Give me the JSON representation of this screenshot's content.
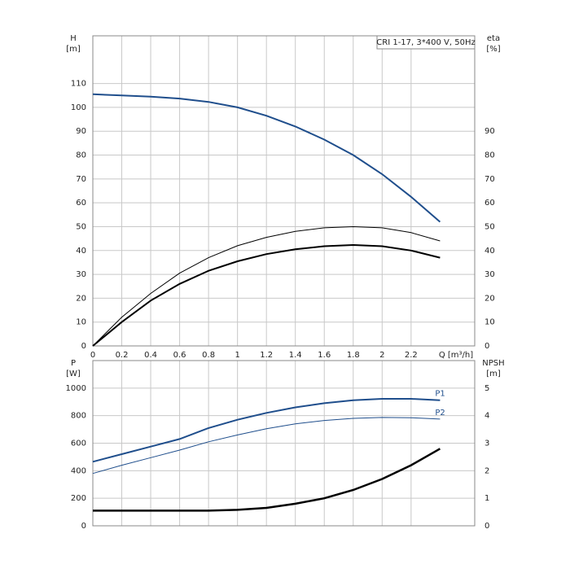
{
  "chart_data": [
    {
      "type": "line",
      "title": "CRI 1-17, 3*400 V, 50Hz",
      "ylabel": "H",
      "yunit": "[m]",
      "y2label": "eta",
      "y2unit": "[%]",
      "xlabel": "Q [m³/h]",
      "x": [
        0,
        0.2,
        0.4,
        0.6,
        0.8,
        1.0,
        1.2,
        1.4,
        1.6,
        1.8,
        2.0,
        2.2,
        2.4
      ],
      "xlim": [
        0,
        2.64
      ],
      "xticks": [
        0,
        0.2,
        0.4,
        0.6,
        0.8,
        1.0,
        1.2,
        1.4,
        1.6,
        1.8,
        2.0,
        2.2
      ],
      "ylim": [
        0,
        130
      ],
      "yticks": [
        0,
        10,
        20,
        30,
        40,
        50,
        60,
        70,
        80,
        90,
        100,
        110
      ],
      "y2lim": [
        0,
        130
      ],
      "y2ticks": [
        0,
        10,
        20,
        30,
        40,
        50,
        60,
        70,
        80,
        90
      ],
      "grid": true,
      "series": [
        {
          "color": "#1f4e8c",
          "values": [
            105.5,
            105,
            104.5,
            103.7,
            102.3,
            100,
            96.5,
            92,
            86.5,
            80,
            72,
            62.5,
            52
          ]
        },
        {
          "color": "#000000",
          "axis": "y2",
          "values": [
            0,
            12,
            22,
            30.5,
            37,
            42,
            45.5,
            48,
            49.5,
            50,
            49.5,
            47.5,
            44
          ]
        },
        {
          "color": "#000000",
          "axis": "y2",
          "values": [
            0,
            10,
            19,
            26,
            31.5,
            35.5,
            38.5,
            40.5,
            41.8,
            42.3,
            41.8,
            40,
            37
          ]
        }
      ]
    },
    {
      "type": "line",
      "ylabel": "P",
      "yunit": "[W]",
      "y2label": "NPSH",
      "y2unit": "[m]",
      "x": [
        0,
        0.2,
        0.4,
        0.6,
        0.8,
        1.0,
        1.2,
        1.4,
        1.6,
        1.8,
        2.0,
        2.2,
        2.4
      ],
      "xlim": [
        0,
        2.64
      ],
      "xticks": [
        0,
        0.2,
        0.4,
        0.6,
        0.8,
        1.0,
        1.2,
        1.4,
        1.6,
        1.8,
        2.0,
        2.2
      ],
      "ylim": [
        0,
        1200
      ],
      "yticks": [
        0,
        200,
        400,
        600,
        800,
        1000
      ],
      "y2lim": [
        0,
        6
      ],
      "y2ticks": [
        0,
        1,
        2,
        3,
        4,
        5
      ],
      "grid": true,
      "series": [
        {
          "name": "P1",
          "color": "#1f4e8c",
          "values": [
            465,
            520,
            575,
            630,
            710,
            770,
            820,
            860,
            890,
            912,
            922,
            922,
            912
          ]
        },
        {
          "name": "P2",
          "color": "#1f4e8c",
          "values": [
            380,
            440,
            495,
            550,
            610,
            660,
            705,
            740,
            765,
            780,
            787,
            785,
            775
          ]
        },
        {
          "color": "#000000",
          "axis": "y2",
          "values": [
            0.55,
            0.55,
            0.55,
            0.55,
            0.55,
            0.58,
            0.65,
            0.8,
            1.0,
            1.3,
            1.7,
            2.2,
            2.8
          ]
        }
      ]
    }
  ]
}
